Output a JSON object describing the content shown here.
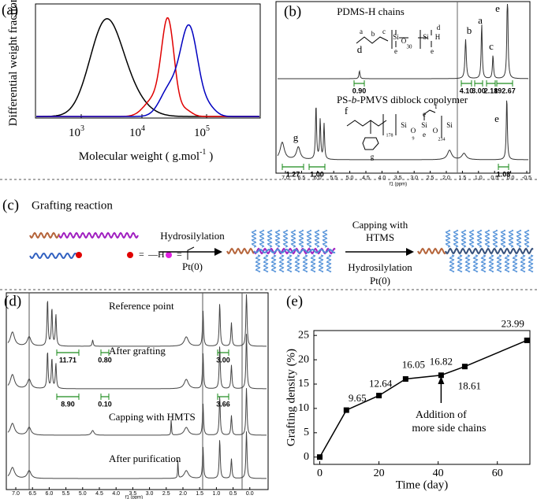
{
  "panel_a": {
    "label": "(a)",
    "ylabel": "Differential weight fraction",
    "xlabel": {
      "text": "Molecular weight ( g.mol",
      "sup": "-1",
      "end": " )"
    },
    "xticks": [
      {
        "base": "10",
        "exp": "3"
      },
      {
        "base": "10",
        "exp": "4"
      },
      {
        "base": "10",
        "exp": "5"
      }
    ]
  },
  "panel_b": {
    "label": "(b)",
    "top_title": "PDMS-H chains",
    "bottom_title": {
      "pre": "PS-",
      "italic": "b",
      "post": "-PMVS diblock copolymer"
    },
    "top_peaks": [
      "d",
      "b",
      "a",
      "c",
      "e"
    ],
    "bottom_peaks": [
      "g",
      "f",
      "e"
    ],
    "top_integrals": [
      "0.90",
      "4.10",
      "3.00",
      "2.18",
      "192.67"
    ],
    "bottom_integrals": [
      "1.27",
      "1.00",
      "1.08"
    ],
    "top_structure": [
      "a",
      "b",
      "c",
      "Si",
      "O",
      "Si",
      "H",
      "30",
      "d",
      "e",
      "e"
    ],
    "bottom_structure": [
      "Si",
      "O",
      "Si",
      "O",
      "Si",
      "178",
      "9",
      "234",
      "f",
      "e",
      "e",
      "g"
    ],
    "xticks": [
      "7.0",
      "6.5",
      "6.0",
      "5.5",
      "5.0",
      "4.5",
      "4.0",
      "3.5",
      "3.0",
      "2.5",
      "2.0",
      "1.5",
      "1.0",
      "0.5",
      "0.0",
      "-0.5"
    ],
    "xlabel": "f1 (ppm)"
  },
  "panel_c": {
    "label": "(c)",
    "title": "Grafting reaction",
    "step1": [
      "Hydrosilylation",
      "Pt(0)"
    ],
    "step2": [
      "Capping with",
      "HTMS",
      "Hydrosilylation",
      "Pt(0)"
    ],
    "legend": [
      "=",
      "—H",
      "="
    ]
  },
  "panel_d": {
    "label": "(d)",
    "traces": [
      "Reference point",
      "After grafting",
      "Capping with HMTS",
      "After purification"
    ],
    "integrals": [
      [
        "11.71",
        "0.80",
        "3.00"
      ],
      [
        "8.90",
        "0.10",
        "3.66"
      ]
    ],
    "xticks": [
      "7.0",
      "6.5",
      "6.0",
      "5.5",
      "5.0",
      "4.5",
      "4.0",
      "3.5",
      "3.0",
      "2.5",
      "2.0",
      "1.5",
      "1.0",
      "0.5",
      "0.0"
    ],
    "xlabel": "f1 (ppm)"
  },
  "chart_data": {
    "type": "line",
    "label": "(e)",
    "xlabel": "Time (day)",
    "ylabel": "Grafting density (%)",
    "x": [
      0,
      9,
      20,
      29,
      41,
      49,
      70
    ],
    "series": [
      {
        "color": "#000000",
        "values": [
          0,
          9.65,
          12.64,
          16.05,
          16.82,
          18.61,
          23.99
        ]
      }
    ],
    "xlim": [
      -2,
      71
    ],
    "ylim": [
      -1.5,
      26
    ],
    "xticks": [
      0,
      20,
      40,
      60
    ],
    "yticks": [
      0,
      5,
      10,
      15,
      20,
      25
    ],
    "annotation": [
      "Addition of",
      "more side chains"
    ]
  }
}
